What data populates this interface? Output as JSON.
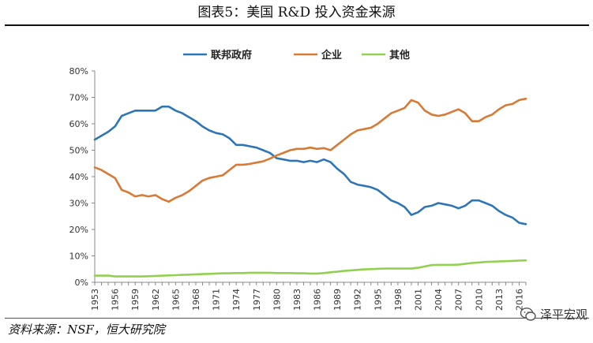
{
  "page": {
    "title": "图表5：美国 R&D 投入资金来源",
    "source": "资料来源：NSF，恒大研究院",
    "watermark": "泽平宏观"
  },
  "colors": {
    "federal": "#2e75b6",
    "business": "#d77a35",
    "other": "#92d050"
  },
  "chart_data": {
    "type": "line",
    "title": "图表5：美国 R&D 投入资金来源",
    "xlabel": "",
    "ylabel": "",
    "ylim": [
      0,
      0.8
    ],
    "y_ticks": [
      0,
      0.1,
      0.2,
      0.3,
      0.4,
      0.5,
      0.6,
      0.7,
      0.8
    ],
    "y_tick_labels": [
      "0%",
      "10%",
      "20%",
      "30%",
      "40%",
      "50%",
      "60%",
      "70%",
      "80%"
    ],
    "x_tick_labels": [
      "1953",
      "1956",
      "1959",
      "1962",
      "1965",
      "1968",
      "1971",
      "1974",
      "1977",
      "1980",
      "1983",
      "1986",
      "1989",
      "1992",
      "1995",
      "1998",
      "2001",
      "2004",
      "2007",
      "2010",
      "2013",
      "2016"
    ],
    "legend_position": "top-center",
    "grid": false,
    "x": [
      1953,
      1954,
      1955,
      1956,
      1957,
      1958,
      1959,
      1960,
      1961,
      1962,
      1963,
      1964,
      1965,
      1966,
      1967,
      1968,
      1969,
      1970,
      1971,
      1972,
      1973,
      1974,
      1975,
      1976,
      1977,
      1978,
      1979,
      1980,
      1981,
      1982,
      1983,
      1984,
      1985,
      1986,
      1987,
      1988,
      1989,
      1990,
      1991,
      1992,
      1993,
      1994,
      1995,
      1996,
      1997,
      1998,
      1999,
      2000,
      2001,
      2002,
      2003,
      2004,
      2005,
      2006,
      2007,
      2008,
      2009,
      2010,
      2011,
      2012,
      2013,
      2014,
      2015,
      2016,
      2017
    ],
    "series": [
      {
        "name": "联邦政府",
        "color_key": "federal",
        "values": [
          0.54,
          0.555,
          0.57,
          0.59,
          0.63,
          0.64,
          0.65,
          0.65,
          0.65,
          0.65,
          0.665,
          0.665,
          0.65,
          0.64,
          0.625,
          0.61,
          0.59,
          0.575,
          0.565,
          0.56,
          0.545,
          0.52,
          0.52,
          0.515,
          0.51,
          0.5,
          0.49,
          0.47,
          0.465,
          0.46,
          0.46,
          0.455,
          0.46,
          0.455,
          0.465,
          0.455,
          0.43,
          0.41,
          0.38,
          0.37,
          0.365,
          0.36,
          0.35,
          0.33,
          0.31,
          0.3,
          0.285,
          0.255,
          0.265,
          0.285,
          0.29,
          0.3,
          0.295,
          0.29,
          0.28,
          0.29,
          0.31,
          0.31,
          0.3,
          0.29,
          0.27,
          0.255,
          0.245,
          0.225,
          0.22
        ]
      },
      {
        "name": "企业",
        "color_key": "business",
        "values": [
          0.435,
          0.425,
          0.41,
          0.395,
          0.35,
          0.34,
          0.325,
          0.33,
          0.325,
          0.33,
          0.315,
          0.305,
          0.32,
          0.33,
          0.345,
          0.365,
          0.385,
          0.395,
          0.4,
          0.405,
          0.425,
          0.445,
          0.445,
          0.448,
          0.453,
          0.458,
          0.468,
          0.48,
          0.49,
          0.5,
          0.505,
          0.505,
          0.51,
          0.505,
          0.508,
          0.5,
          0.52,
          0.54,
          0.56,
          0.575,
          0.58,
          0.585,
          0.6,
          0.62,
          0.64,
          0.65,
          0.66,
          0.69,
          0.68,
          0.65,
          0.635,
          0.63,
          0.635,
          0.645,
          0.655,
          0.64,
          0.61,
          0.61,
          0.625,
          0.635,
          0.655,
          0.67,
          0.675,
          0.69,
          0.695
        ]
      },
      {
        "name": "其他",
        "color_key": "other",
        "values": [
          0.025,
          0.025,
          0.025,
          0.022,
          0.022,
          0.022,
          0.022,
          0.022,
          0.023,
          0.024,
          0.025,
          0.026,
          0.027,
          0.028,
          0.029,
          0.03,
          0.031,
          0.032,
          0.033,
          0.034,
          0.034,
          0.035,
          0.035,
          0.036,
          0.036,
          0.036,
          0.036,
          0.035,
          0.035,
          0.035,
          0.034,
          0.034,
          0.033,
          0.033,
          0.035,
          0.038,
          0.04,
          0.043,
          0.045,
          0.047,
          0.049,
          0.05,
          0.051,
          0.052,
          0.052,
          0.052,
          0.052,
          0.052,
          0.055,
          0.06,
          0.065,
          0.066,
          0.066,
          0.066,
          0.067,
          0.07,
          0.073,
          0.075,
          0.077,
          0.078,
          0.079,
          0.08,
          0.081,
          0.082,
          0.083
        ]
      }
    ]
  }
}
